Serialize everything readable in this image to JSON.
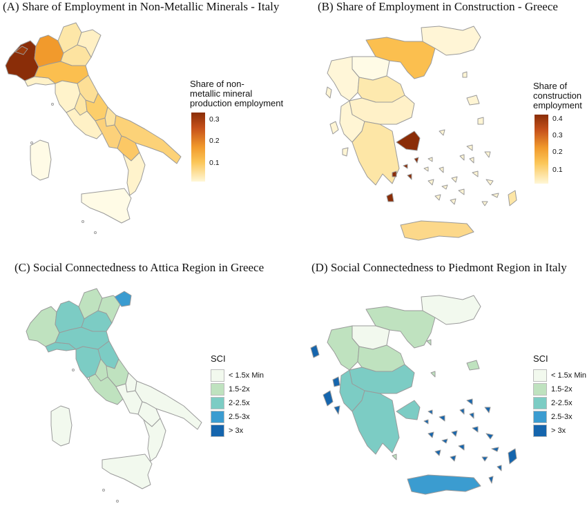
{
  "panels": {
    "a": {
      "title": "(A) Share of Employment in Non-Metallic Minerals - Italy",
      "legend_title": "Share of non-\nmetallic mineral\nproduction employment",
      "ticks": [
        "0.3",
        "0.2",
        "0.1"
      ],
      "scale_max": 0.35
    },
    "b": {
      "title": "(B) Share of Employment in Construction - Greece",
      "legend_title": "Share of\nconstruction\nemployment",
      "ticks": [
        "0.4",
        "0.3",
        "0.2",
        "0.1"
      ],
      "scale_max": 0.45
    },
    "c": {
      "title": "(C) Social Connectedness to Attica Region in Greece"
    },
    "d": {
      "title": "(D) Social Connectedness to Piedmont Region in Italy"
    }
  },
  "sci_legend": {
    "title": "SCI",
    "items": [
      {
        "label": "< 1.5x Min",
        "color": "#f2f9ee"
      },
      {
        "label": "1.5-2x",
        "color": "#bfe2bf"
      },
      {
        "label": "2-2.5x",
        "color": "#7cccc4"
      },
      {
        "label": "2.5-3x",
        "color": "#3b9cd0"
      },
      {
        "label": "> 3x",
        "color": "#1565ad"
      }
    ]
  },
  "colors": {
    "gradient_low": "#fff7d6",
    "gradient_mid": "#fbc658",
    "gradient_high": "#8a2d08",
    "border": "#9a9a9a"
  }
}
